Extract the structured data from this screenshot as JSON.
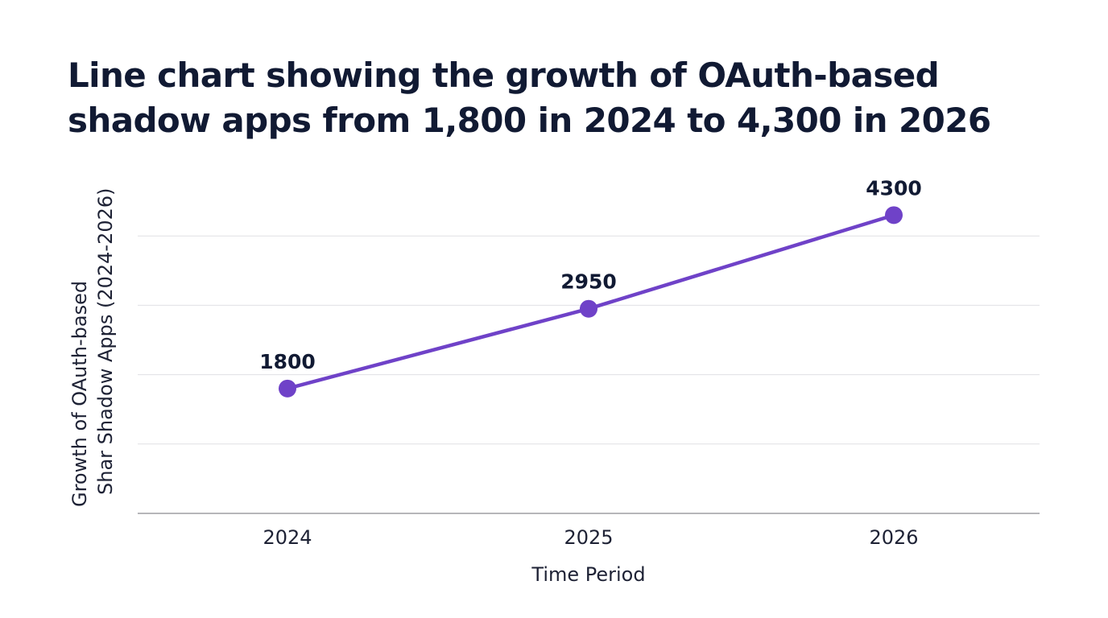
{
  "chart_data": {
    "type": "line",
    "title": "Line chart showing the growth of OAuth-based shadow apps from 1,800 in 2024 to 4,300 in 2026",
    "categories": [
      "2024",
      "2025",
      "2026"
    ],
    "series": [
      {
        "values": [
          1800,
          2950,
          4300
        ],
        "color": "#6f42c8"
      }
    ],
    "data_labels": [
      "1800",
      "2950",
      "4300"
    ],
    "xlabel": "Time Period",
    "ylabel": "Growth of OAuth-based Shar Shadow Apps (2024-2026)",
    "ylim": [
      0,
      4000
    ],
    "y_gridlines": [
      1000,
      2000,
      3000,
      4000
    ],
    "grid": "horizontal",
    "colors": {
      "line": "#6f42c8",
      "grid": "#e0e0e4",
      "axis": "#8a8a90",
      "text": "#111a33"
    }
  }
}
